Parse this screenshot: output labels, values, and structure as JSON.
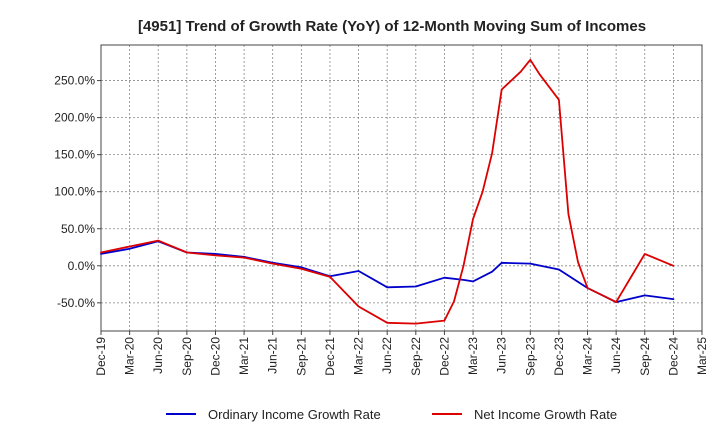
{
  "chart_data": {
    "type": "line",
    "title": "[4951]  Trend of Growth Rate (YoY) of 12-Month Moving Sum of Incomes",
    "xlabel": "",
    "ylabel": "",
    "x_ticks": [
      "Dec-19",
      "Mar-20",
      "Jun-20",
      "Sep-20",
      "Dec-20",
      "Mar-21",
      "Jun-21",
      "Sep-21",
      "Dec-21",
      "Mar-22",
      "Jun-22",
      "Sep-22",
      "Dec-22",
      "Mar-23",
      "Jun-23",
      "Sep-23",
      "Dec-23",
      "Mar-24",
      "Jun-24",
      "Sep-24",
      "Dec-24",
      "Mar-25"
    ],
    "y_ticks": [
      -50,
      0,
      50,
      100,
      150,
      200,
      250
    ],
    "y_tick_labels": [
      "-50.0%",
      "0.0%",
      "50.0%",
      "100.0%",
      "150.0%",
      "200.0%",
      "250.0%"
    ],
    "ylim": [
      -88,
      298
    ],
    "grid": true,
    "legend_position": "bottom",
    "series": [
      {
        "name": "Ordinary Income Growth Rate",
        "color": "#0000cc",
        "points": [
          [
            "Dec-19",
            16
          ],
          [
            "Mar-20",
            23
          ],
          [
            "Jun-20",
            33
          ],
          [
            "Sep-20",
            18
          ],
          [
            "Dec-20",
            16
          ],
          [
            "Mar-21",
            12
          ],
          [
            "Jun-21",
            4
          ],
          [
            "Sep-21",
            -2
          ],
          [
            "Dec-21",
            -14
          ],
          [
            "Mar-22",
            -7
          ],
          [
            "Jun-22",
            -29
          ],
          [
            "Sep-22",
            -28
          ],
          [
            "Dec-22",
            -16
          ],
          [
            "Feb-23",
            -19
          ],
          [
            "Mar-23",
            -21
          ],
          [
            "May-23",
            -8
          ],
          [
            "Jun-23",
            4
          ],
          [
            "Sep-23",
            3
          ],
          [
            "Dec-23",
            -5
          ],
          [
            "Mar-24",
            -30
          ],
          [
            "Jun-24",
            -49
          ],
          [
            "Sep-24",
            -40
          ],
          [
            "Dec-24",
            -45
          ]
        ]
      },
      {
        "name": "Net Income Growth Rate",
        "color": "#dd0000",
        "points": [
          [
            "Dec-19",
            18
          ],
          [
            "Mar-20",
            26
          ],
          [
            "Jun-20",
            34
          ],
          [
            "Sep-20",
            18
          ],
          [
            "Dec-20",
            14
          ],
          [
            "Mar-21",
            11
          ],
          [
            "Jun-21",
            3
          ],
          [
            "Sep-21",
            -4
          ],
          [
            "Dec-21",
            -15
          ],
          [
            "Mar-22",
            -55
          ],
          [
            "Jun-22",
            -77
          ],
          [
            "Sep-22",
            -78
          ],
          [
            "Dec-22",
            -74
          ],
          [
            "Jan-23",
            -48
          ],
          [
            "Feb-23",
            0
          ],
          [
            "Mar-23",
            63
          ],
          [
            "Apr-23",
            100
          ],
          [
            "May-23",
            152
          ],
          [
            "Jun-23",
            238
          ],
          [
            "Aug-23",
            262
          ],
          [
            "Sep-23",
            278
          ],
          [
            "Oct-23",
            258
          ],
          [
            "Dec-23",
            224
          ],
          [
            "Jan-24",
            70
          ],
          [
            "Feb-24",
            5
          ],
          [
            "Mar-24",
            -30
          ],
          [
            "Jun-24",
            -49
          ],
          [
            "Sep-24",
            16
          ],
          [
            "Dec-24",
            0
          ]
        ]
      }
    ]
  }
}
